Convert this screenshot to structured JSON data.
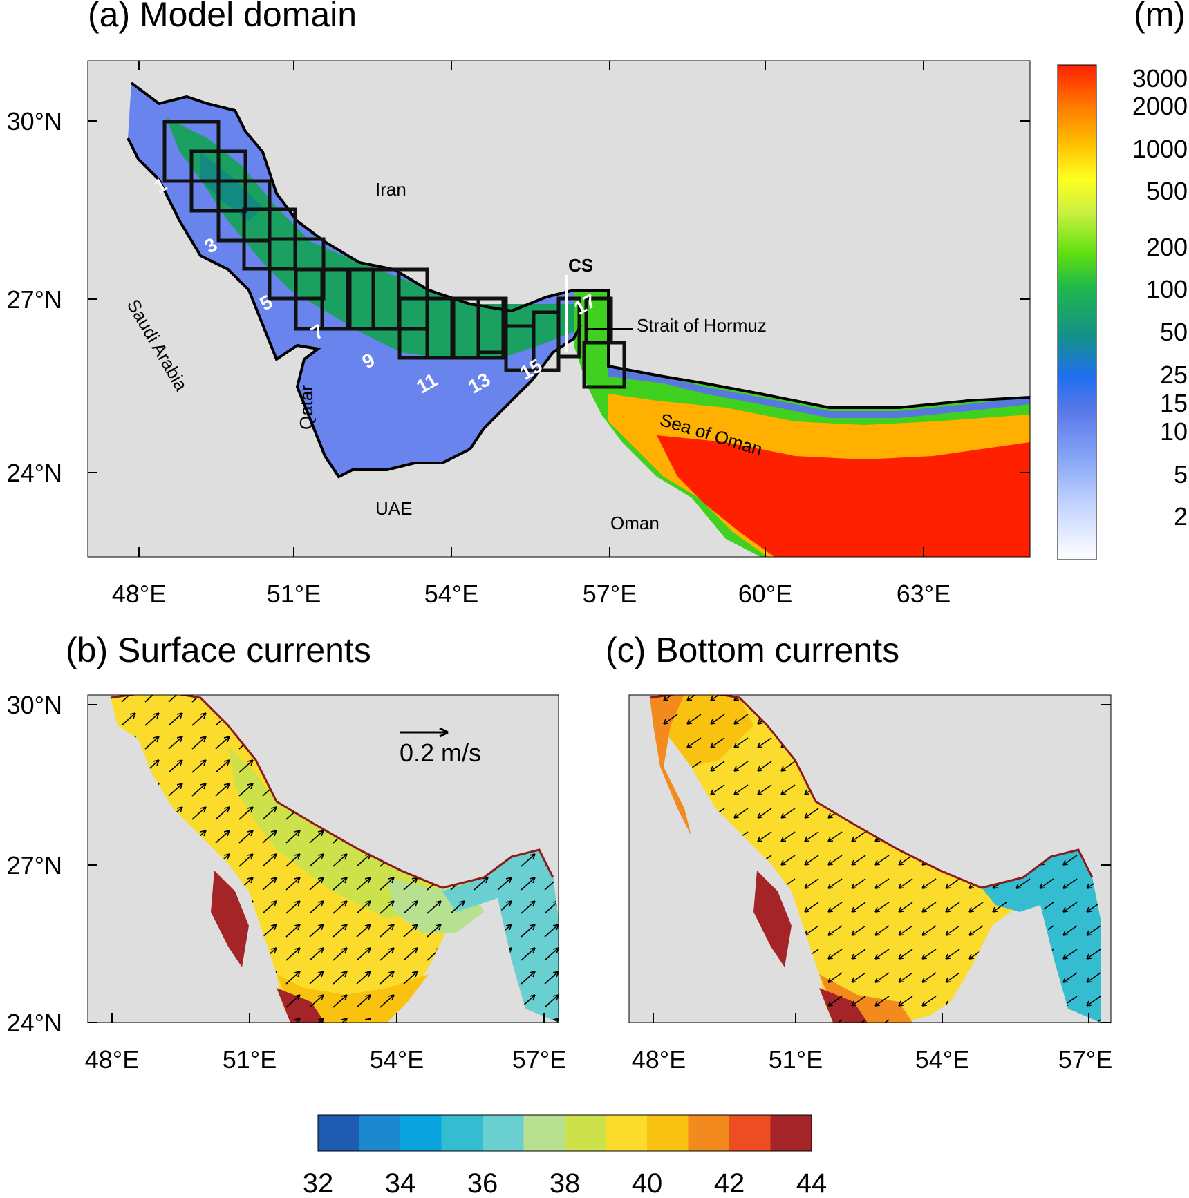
{
  "panel_a": {
    "title": "(a) Model domain",
    "unit": "(m)",
    "lat_labels": [
      "30°N",
      "27°N",
      "24°N"
    ],
    "lon_labels": [
      "48°E",
      "51°E",
      "54°E",
      "57°E",
      "60°E",
      "63°E"
    ],
    "place_labels": {
      "iran": "Iran",
      "saudi": "Saudi Arabia",
      "qatar": "Qatar",
      "uae": "UAE",
      "oman": "Oman",
      "sea_of_oman": "Sea of Oman",
      "strait": "Strait of Hormuz",
      "cs": "CS"
    },
    "box_labels": [
      "1",
      "3",
      "5",
      "7",
      "9",
      "11",
      "13",
      "15",
      "17"
    ],
    "depth_colorbar_labels": [
      "3000",
      "2000",
      "1000",
      "500",
      "200",
      "100",
      "50",
      "25",
      "15",
      "10",
      "5",
      "2"
    ]
  },
  "panel_b": {
    "title": "(b) Surface currents",
    "lat_labels": [
      "30°N",
      "27°N",
      "24°N"
    ],
    "lon_labels": [
      "48°E",
      "51°E",
      "54°E",
      "57°E"
    ],
    "reference_vector": "0.2 m/s"
  },
  "panel_c": {
    "title": "(c) Bottom currents",
    "lon_labels": [
      "48°E",
      "51°E",
      "54°E",
      "57°E"
    ]
  },
  "salinity_colorbar": {
    "labels": [
      "32",
      "34",
      "36",
      "38",
      "40",
      "42",
      "44"
    ],
    "colors": [
      "#1f5bb0",
      "#1b88d0",
      "#0aa4e0",
      "#34bcd0",
      "#6acfd0",
      "#b7e090",
      "#cde24a",
      "#fbdb2b",
      "#f9c210",
      "#f38a1e",
      "#ec4d22",
      "#a52428"
    ]
  },
  "depth_colors": [
    "#ffffff",
    "#c8d8ff",
    "#8aa8f8",
    "#5a78e8",
    "#1f6ff0",
    "#14908a",
    "#1fb84a",
    "#60e010",
    "#c8f040",
    "#ffff20",
    "#ffc000",
    "#ff8000",
    "#ff2000"
  ],
  "land_color": "#dedede"
}
